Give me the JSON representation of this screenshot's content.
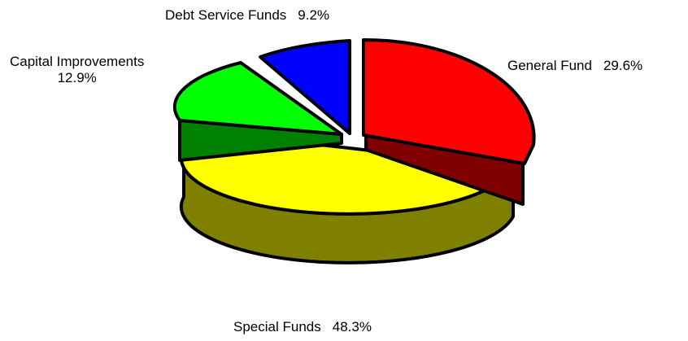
{
  "chart_data": {
    "type": "pie",
    "title": "",
    "slices": [
      {
        "label": "General Fund",
        "value": 29.6,
        "value_label": "29.6%",
        "color": "#FF0000",
        "side_color": "#800000"
      },
      {
        "label": "Special Funds",
        "value": 48.3,
        "value_label": "48.3%",
        "color": "#FFFF00",
        "side_color": "#808000"
      },
      {
        "label": "Capital Improvements",
        "value": 12.9,
        "value_label": "12.9%",
        "color": "#00FF00",
        "side_color": "#008000"
      },
      {
        "label": "Debt Service Funds",
        "value": 9.2,
        "value_label": "9.2%",
        "color": "#0000FF",
        "side_color": "#000080"
      }
    ],
    "style": "3d-exploded",
    "legend": "none"
  }
}
